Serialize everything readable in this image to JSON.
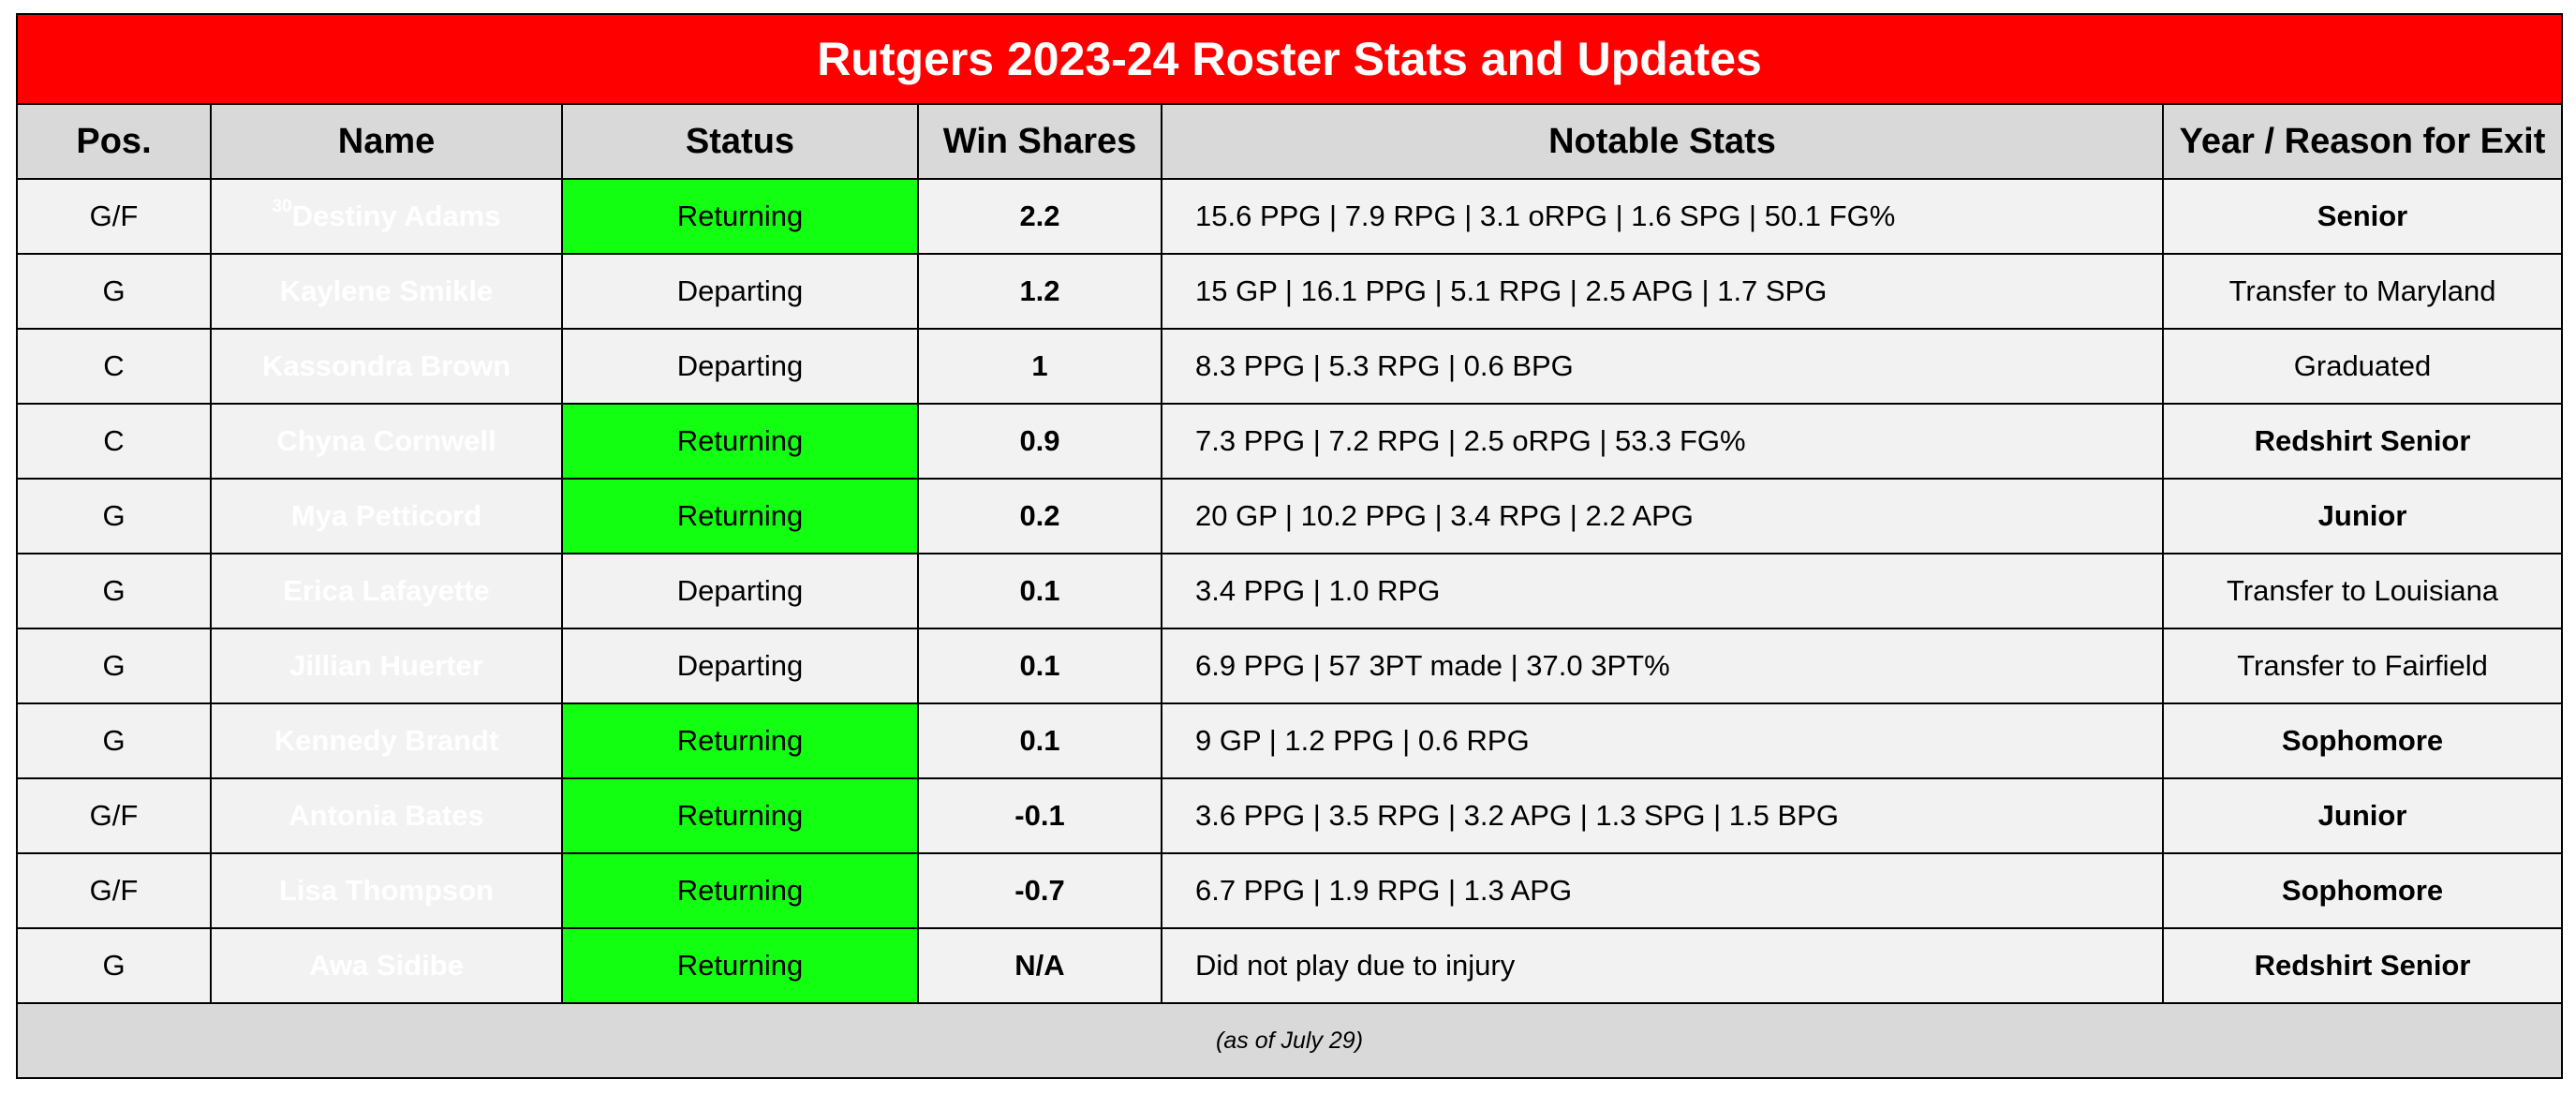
{
  "title": "Rutgers 2023-24 Roster Stats and Updates",
  "headers": [
    "Pos.",
    "Name",
    "Status",
    "Win Shares",
    "Notable Stats",
    "Year / Reason for Exit"
  ],
  "rows": [
    {
      "pos": "G/F",
      "sup": "30",
      "name": "Destiny Adams",
      "status": "Returning",
      "ws": "2.2",
      "stats": "15.6 PPG | 7.9 RPG | 3.1 oRPG | 1.6 SPG | 50.1 FG%",
      "exit": "Senior"
    },
    {
      "pos": "G",
      "sup": "",
      "name": "Kaylene Smikle",
      "status": "Departing",
      "ws": "1.2",
      "stats": "15 GP | 16.1 PPG | 5.1 RPG | 2.5 APG | 1.7 SPG",
      "exit": "Transfer to Maryland"
    },
    {
      "pos": "C",
      "sup": "",
      "name": "Kassondra Brown",
      "status": "Departing",
      "ws": "1",
      "stats": "8.3 PPG | 5.3 RPG | 0.6 BPG",
      "exit": "Graduated"
    },
    {
      "pos": "C",
      "sup": "",
      "name": "Chyna Cornwell",
      "status": "Returning",
      "ws": "0.9",
      "stats": "7.3 PPG | 7.2 RPG | 2.5 oRPG | 53.3 FG%",
      "exit": "Redshirt Senior"
    },
    {
      "pos": "G",
      "sup": "",
      "name": "Mya Petticord",
      "status": "Returning",
      "ws": "0.2",
      "stats": "20 GP | 10.2 PPG | 3.4 RPG | 2.2 APG",
      "exit": "Junior"
    },
    {
      "pos": "G",
      "sup": "",
      "name": "Erica Lafayette",
      "status": "Departing",
      "ws": "0.1",
      "stats": "3.4 PPG | 1.0 RPG",
      "exit": "Transfer to Louisiana"
    },
    {
      "pos": "G",
      "sup": "",
      "name": "Jillian Huerter",
      "status": "Departing",
      "ws": "0.1",
      "stats": "6.9 PPG | 57 3PT made | 37.0 3PT%",
      "exit": "Transfer to Fairfield"
    },
    {
      "pos": "G",
      "sup": "",
      "name": "Kennedy Brandt",
      "status": "Returning",
      "ws": "0.1",
      "stats": "9 GP | 1.2 PPG | 0.6 RPG",
      "exit": "Sophomore"
    },
    {
      "pos": "G/F",
      "sup": "",
      "name": "Antonia Bates",
      "status": "Returning",
      "ws": "-0.1",
      "stats": "3.6 PPG | 3.5 RPG | 3.2 APG | 1.3 SPG | 1.5 BPG",
      "exit": "Junior"
    },
    {
      "pos": "G/F",
      "sup": "",
      "name": "Lisa Thompson",
      "status": "Returning",
      "ws": "-0.7",
      "stats": "6.7 PPG | 1.9 RPG | 1.3 APG",
      "exit": "Sophomore"
    },
    {
      "pos": "G",
      "sup": "",
      "name": "Awa Sidibe",
      "status": "Returning",
      "ws": "N/A",
      "stats": "Did not play due to injury",
      "exit": "Redshirt Senior"
    }
  ],
  "footnote": "(as of July 29)",
  "colors": {
    "title_bg": "#ff0000",
    "returning": "#12ff12",
    "departing": "#ff0000",
    "header_bg": "#d9d9d9",
    "row_bg": "#f2f2f2"
  }
}
